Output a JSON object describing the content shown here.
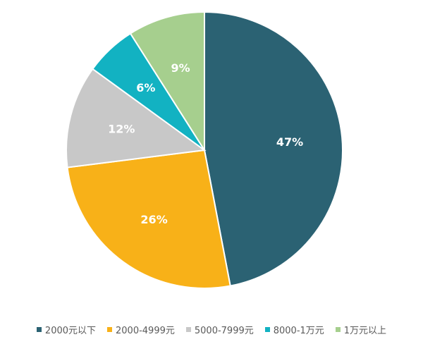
{
  "chart_data": {
    "type": "pie",
    "title": "",
    "start_angle_deg": 0,
    "direction": "clockwise",
    "slices": [
      {
        "label": "2000元以下",
        "value": 47,
        "display": "47%",
        "color": "#2b6273"
      },
      {
        "label": "2000-4999元",
        "value": 26,
        "display": "26%",
        "color": "#f8b118"
      },
      {
        "label": "5000-7999元",
        "value": 12,
        "display": "12%",
        "color": "#c8c8c8"
      },
      {
        "label": "8000-1万元",
        "value": 6,
        "display": "6%",
        "color": "#12b2c2"
      },
      {
        "label": "1万元以上",
        "value": 9,
        "display": "9%",
        "color": "#a6cf8e"
      }
    ],
    "legend_position": "bottom"
  }
}
